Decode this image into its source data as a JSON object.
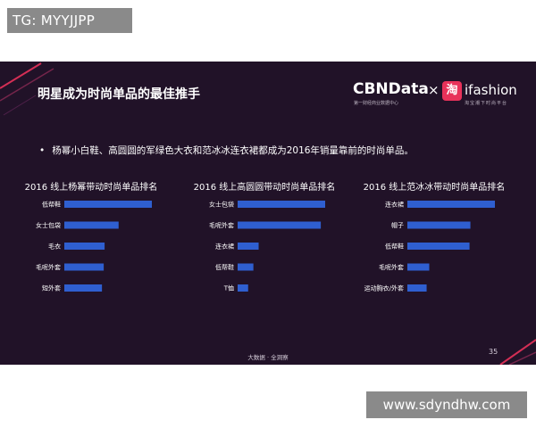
{
  "watermarks": {
    "top": "TG: MYYJJPP",
    "bottom": "www.sdyndhw.com"
  },
  "slide": {
    "title": "明星成为时尚单品的最佳推手",
    "bullet": "杨幂小白鞋、高圆圆的军绿色大衣和范冰冰连衣裙都成为2016年销量靠前的时尚单品。",
    "footer": "大数据 · 全洞察",
    "page_number": "35"
  },
  "logo": {
    "cbn": "CBNData",
    "cbn_sub": "第一财经商业数据中心",
    "x": "×",
    "tao": "淘",
    "ifashion": "ifashion",
    "ifashion_sub": "淘宝潮下时尚平台"
  },
  "colors": {
    "background": "#211228",
    "bar": "#2f5fd0",
    "accent": "#e8325a"
  },
  "chart_data": [
    {
      "type": "bar",
      "orientation": "horizontal",
      "title": "2016 线上杨幂带动时尚单品排名",
      "categories": [
        "低帮鞋",
        "女士包袋",
        "毛衣",
        "毛呢外套",
        "短外套"
      ],
      "values": [
        100,
        62,
        46,
        45,
        43
      ]
    },
    {
      "type": "bar",
      "orientation": "horizontal",
      "title": "2016 线上高圆圆带动时尚单品排名",
      "categories": [
        "女士包袋",
        "毛呢外套",
        "连衣裙",
        "低帮鞋",
        "T恤"
      ],
      "values": [
        100,
        95,
        24,
        18,
        12
      ]
    },
    {
      "type": "bar",
      "orientation": "horizontal",
      "title": "2016 线上范冰冰带动时尚单品排名",
      "categories": [
        "连衣裙",
        "帽子",
        "低帮鞋",
        "毛呢外套",
        "运动胸衣/外套"
      ],
      "values": [
        100,
        72,
        71,
        25,
        22
      ]
    }
  ]
}
